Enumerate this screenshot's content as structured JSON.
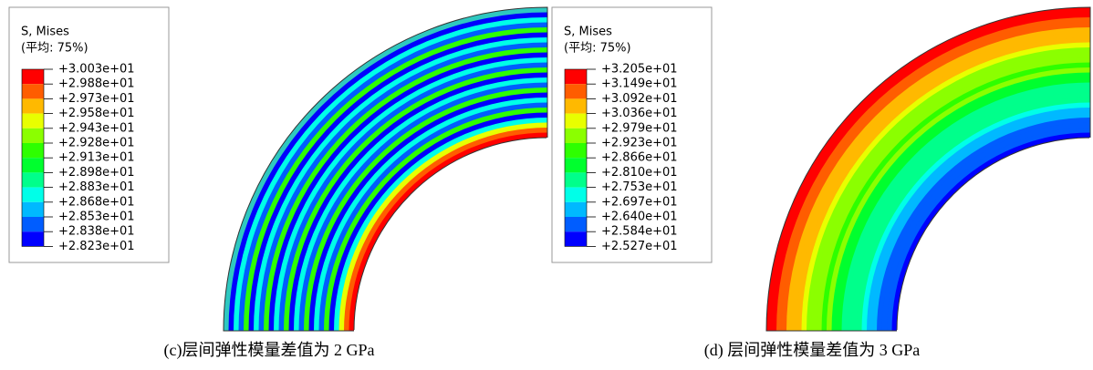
{
  "panels": [
    {
      "legend": {
        "title": "S, Mises",
        "subtitle": "(平均: 75%)",
        "labels": [
          "+3.003e+01",
          "+2.988e+01",
          "+2.973e+01",
          "+2.958e+01",
          "+2.943e+01",
          "+2.928e+01",
          "+2.913e+01",
          "+2.898e+01",
          "+2.883e+01",
          "+2.868e+01",
          "+2.853e+01",
          "+2.838e+01",
          "+2.823e+01"
        ]
      },
      "caption": "(c)层间弹性模量差值为 2 GPa"
    },
    {
      "legend": {
        "title": "S, Mises",
        "subtitle": "(平均: 75%)",
        "labels": [
          "+3.205e+01",
          "+3.149e+01",
          "+3.092e+01",
          "+3.036e+01",
          "+2.979e+01",
          "+2.923e+01",
          "+2.866e+01",
          "+2.810e+01",
          "+2.753e+01",
          "+2.697e+01",
          "+2.640e+01",
          "+2.584e+01",
          "+2.527e+01"
        ]
      },
      "caption": "(d)  层间弹性模量差值为 3 GPa"
    }
  ]
}
